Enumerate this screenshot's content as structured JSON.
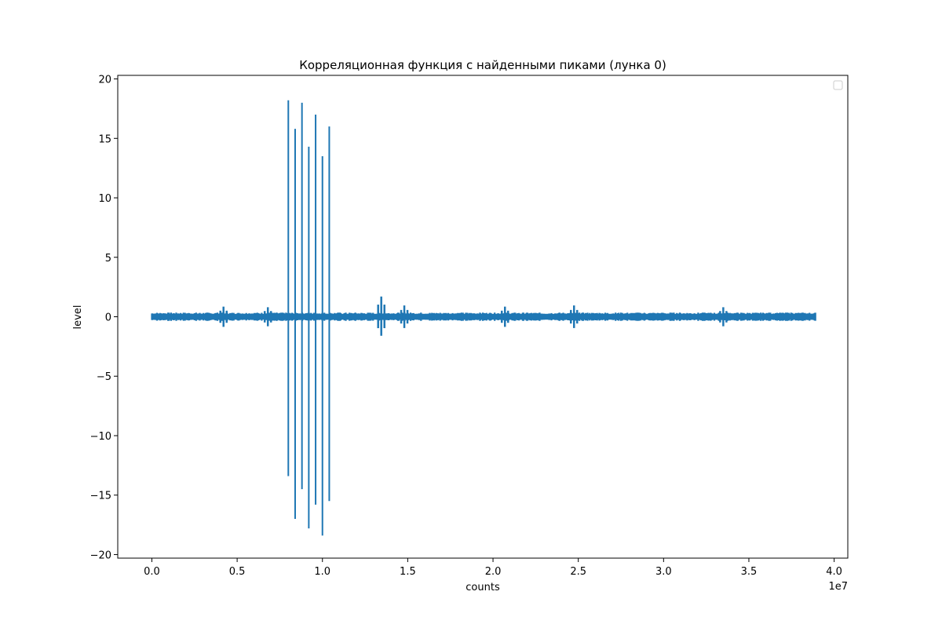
{
  "chart_data": {
    "type": "line",
    "title": "Корреляционная функция с найденными пиками (лунка 0)",
    "xlabel": "counts",
    "ylabel": "level",
    "x_offset_text": "1e7",
    "xlim": [
      -0.2,
      4.08
    ],
    "ylim": [
      -20.3,
      20.3
    ],
    "x_unit_scale": 10000000,
    "x_ticks": [
      0.0,
      0.5,
      1.0,
      1.5,
      2.0,
      2.5,
      3.0,
      3.5,
      4.0
    ],
    "x_tick_labels": [
      "0.0",
      "0.5",
      "1.0",
      "1.5",
      "2.0",
      "2.5",
      "3.0",
      "3.5",
      "4.0"
    ],
    "y_ticks": [
      20,
      15,
      10,
      5,
      0,
      -5,
      -10,
      -15,
      -20
    ],
    "y_tick_labels": [
      "20",
      "15",
      "10",
      "5",
      "0",
      "−5",
      "−10",
      "−15",
      "−20"
    ],
    "grid": false,
    "legend": {
      "placement": "upper-right",
      "entries": []
    },
    "series": [
      {
        "color": "#1f77b4",
        "x_range": [
          0.0,
          3.89
        ],
        "noise_amplitude": 0.35,
        "peaks": [
          {
            "x": 0.8,
            "max": 18.2,
            "min": -13.4
          },
          {
            "x": 0.84,
            "max": 15.8,
            "min": -17.0
          },
          {
            "x": 0.88,
            "max": 18.0,
            "min": -14.5
          },
          {
            "x": 0.92,
            "max": 14.3,
            "min": -17.8
          },
          {
            "x": 0.96,
            "max": 17.0,
            "min": -15.8
          },
          {
            "x": 1.0,
            "max": 13.5,
            "min": -18.4
          },
          {
            "x": 1.04,
            "max": 16.0,
            "min": -15.5
          }
        ],
        "bursts": [
          {
            "x": 1.345,
            "max": 1.7,
            "min": -1.6
          },
          {
            "x": 0.42,
            "max": 0.85,
            "min": -0.85
          },
          {
            "x": 0.68,
            "max": 0.8,
            "min": -0.8
          },
          {
            "x": 1.48,
            "max": 0.95,
            "min": -0.95
          },
          {
            "x": 2.07,
            "max": 0.85,
            "min": -0.85
          },
          {
            "x": 2.475,
            "max": 0.95,
            "min": -0.95
          },
          {
            "x": 3.35,
            "max": 0.8,
            "min": -0.8
          }
        ]
      }
    ]
  }
}
